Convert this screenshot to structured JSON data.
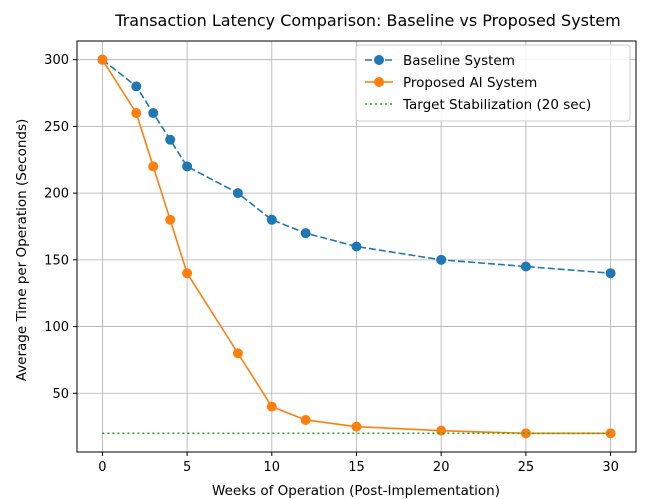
{
  "chart_data": {
    "type": "line",
    "title": "Transaction Latency Comparison: Baseline vs Proposed System",
    "xlabel": "Weeks of Operation (Post-Implementation)",
    "ylabel": "Average Time per Operation (Seconds)",
    "xlim": [
      -1.5,
      31.5
    ],
    "ylim": [
      6,
      314
    ],
    "xticks": [
      0,
      5,
      10,
      15,
      20,
      25,
      30
    ],
    "yticks": [
      50,
      100,
      150,
      200,
      250,
      300
    ],
    "grid": true,
    "legend_position": "top-right",
    "series": [
      {
        "name": "Baseline System",
        "color": "#1f77b4",
        "style": "dashed",
        "marker": "circle",
        "x": [
          0,
          2,
          3,
          4,
          5,
          8,
          10,
          12,
          15,
          20,
          25,
          30
        ],
        "y": [
          300,
          280,
          260,
          240,
          220,
          200,
          180,
          170,
          160,
          150,
          145,
          140
        ]
      },
      {
        "name": "Proposed AI System",
        "color": "#ff7f0e",
        "style": "solid",
        "marker": "circle",
        "x": [
          0,
          2,
          3,
          4,
          5,
          8,
          10,
          12,
          15,
          20,
          25,
          30
        ],
        "y": [
          300,
          260,
          220,
          180,
          140,
          80,
          40,
          30,
          25,
          22,
          20,
          20
        ]
      },
      {
        "name": "Target Stabilization (20 sec)",
        "color": "#2ca02c",
        "style": "dotted",
        "marker": "none",
        "x": [
          0,
          30
        ],
        "y": [
          20,
          20
        ]
      }
    ]
  }
}
